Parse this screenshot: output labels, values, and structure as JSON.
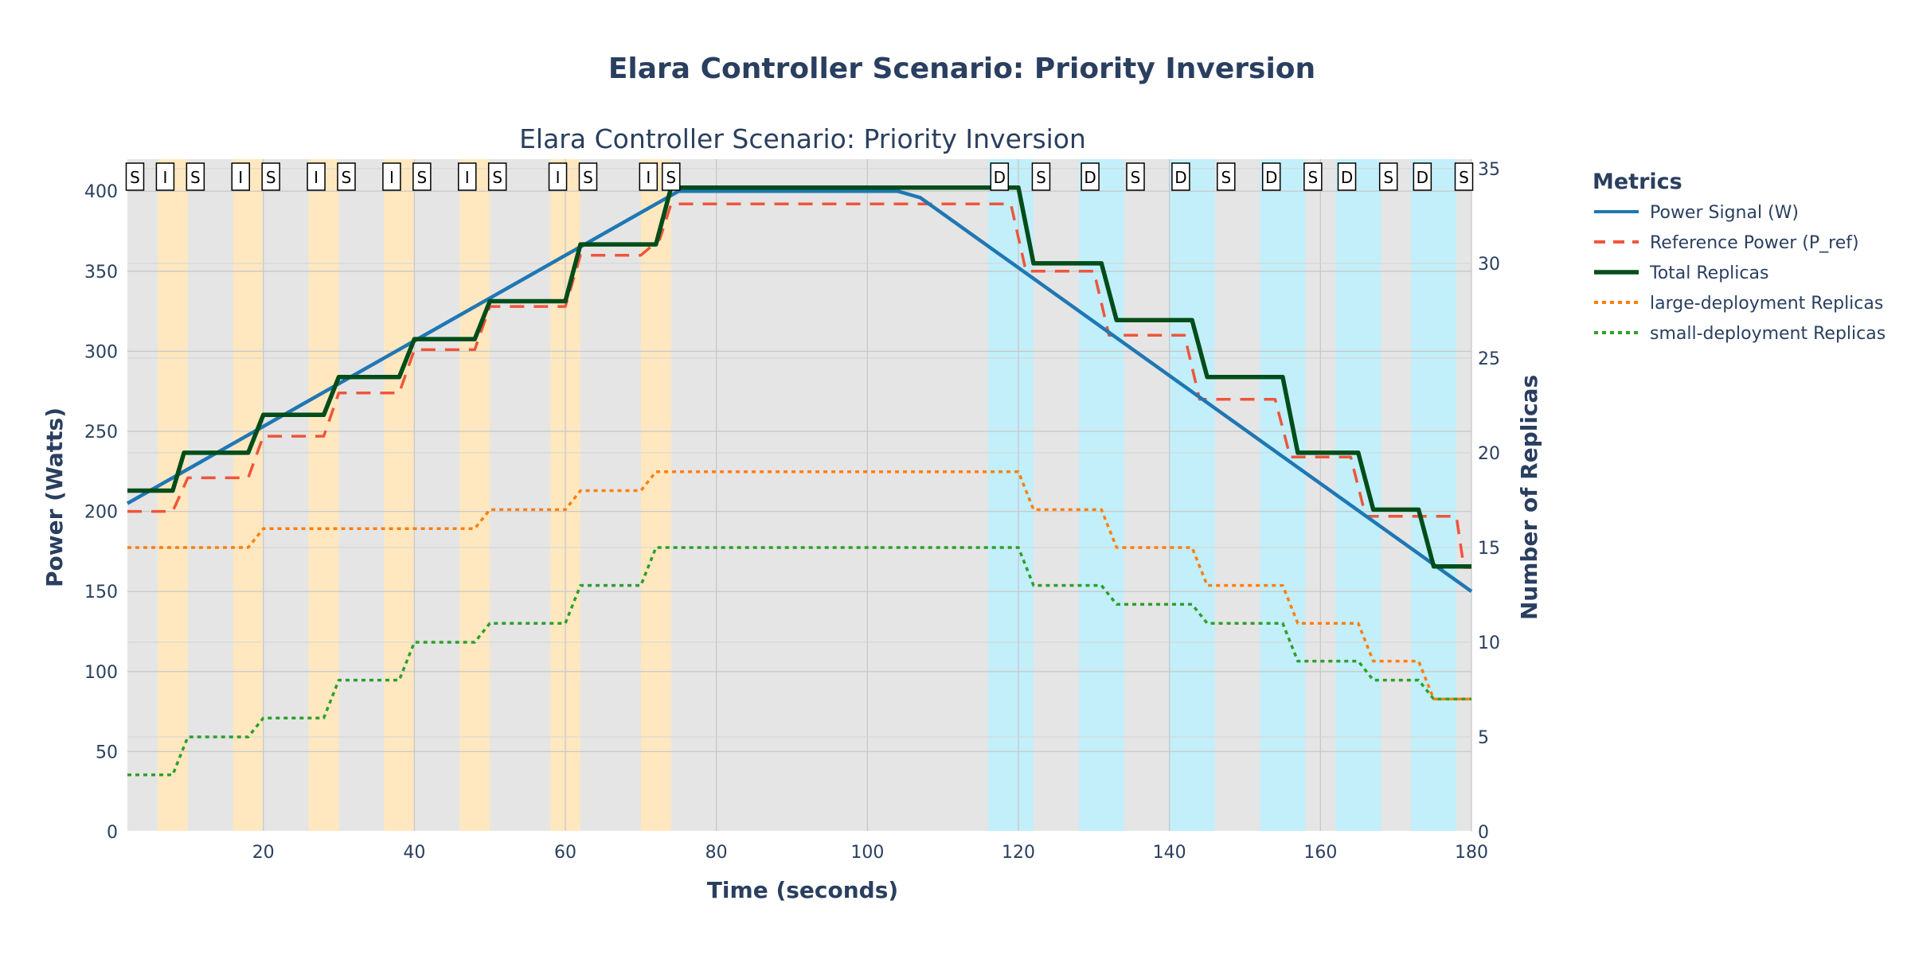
{
  "chart_data": {
    "type": "line",
    "title": "Elara Controller Scenario: Priority Inversion",
    "subtitle": "Elara Controller Scenario: Priority Inversion",
    "xlabel": "Time (seconds)",
    "ylabel_left": "Power (Watts)",
    "ylabel_right": "Number of Replicas",
    "xlim": [
      2,
      180
    ],
    "ylim_left": [
      0,
      420
    ],
    "ylim_right": [
      0,
      35.5
    ],
    "x_ticks": [
      20,
      40,
      60,
      80,
      100,
      120,
      140,
      160,
      180
    ],
    "y_left_ticks": [
      0,
      50,
      100,
      150,
      200,
      250,
      300,
      350,
      400
    ],
    "y_right_ticks": [
      0,
      5,
      10,
      15,
      20,
      25,
      30,
      35
    ],
    "grid": true,
    "legend_title": "Metrics",
    "legend_position": "right",
    "series": [
      {
        "name": "Power Signal (W)",
        "axis": "left",
        "color": "#1f77b4",
        "dash": "solid",
        "x": [
          2,
          75,
          104,
          107,
          180
        ],
        "y": [
          205,
          400,
          400,
          396,
          150
        ]
      },
      {
        "name": "Reference Power (P_ref)",
        "axis": "left",
        "color": "#ef553b",
        "dash": "dash",
        "x": [
          2,
          8,
          10,
          18,
          20,
          28,
          30,
          38,
          40,
          48,
          50,
          60,
          62,
          70,
          72.5,
          74,
          119,
          121,
          130,
          132,
          142,
          144,
          154,
          156,
          164,
          166,
          172,
          174,
          178,
          179,
          180
        ],
        "y": [
          200,
          200,
          221,
          221,
          247,
          247,
          274,
          274,
          301,
          301,
          328,
          328,
          360,
          360,
          370,
          392,
          392,
          350,
          350,
          310,
          310,
          270,
          270,
          234,
          234,
          197,
          197,
          197,
          197,
          165,
          165
        ]
      },
      {
        "name": "Total Replicas",
        "axis": "right",
        "color": "#004d1a",
        "dash": "solid",
        "x": [
          2,
          8,
          9.5,
          18,
          20,
          28,
          30,
          38,
          40,
          48,
          50,
          60,
          62,
          70,
          72,
          74,
          120,
          122,
          131,
          133,
          143,
          145,
          155,
          157,
          165,
          167,
          173,
          175,
          180
        ],
        "y": [
          18,
          18,
          20,
          20,
          22,
          22,
          24,
          24,
          26,
          26,
          28,
          28,
          31,
          31,
          31,
          34,
          34,
          30,
          30,
          27,
          27,
          24,
          24,
          20,
          20,
          17,
          17,
          14,
          14
        ]
      },
      {
        "name": "large-deployment Replicas",
        "axis": "right",
        "color": "#ff7f0e",
        "dash": "dot",
        "x": [
          2,
          18,
          20,
          48,
          50,
          60,
          62,
          70,
          72,
          120,
          122,
          131,
          133,
          143,
          145,
          155,
          157,
          165,
          167,
          173,
          175,
          180
        ],
        "y": [
          15,
          15,
          16,
          16,
          17,
          17,
          18,
          18,
          19,
          19,
          17,
          17,
          15,
          15,
          13,
          13,
          11,
          11,
          9,
          9,
          7,
          7
        ]
      },
      {
        "name": "small-deployment Replicas",
        "axis": "right",
        "color": "#2ca02c",
        "dash": "dot",
        "x": [
          2,
          8,
          10,
          18,
          20,
          28,
          30,
          38,
          40,
          48,
          50,
          60,
          62,
          70,
          72,
          120,
          122,
          131,
          133,
          143,
          145,
          155,
          157,
          165,
          167,
          173,
          175,
          180
        ],
        "y": [
          3,
          3,
          5,
          5,
          6,
          6,
          8,
          8,
          10,
          10,
          11,
          11,
          13,
          13,
          15,
          15,
          13,
          13,
          12,
          12,
          11,
          11,
          9,
          9,
          8,
          8,
          7,
          7
        ]
      }
    ],
    "bands": [
      {
        "x0": 6,
        "x1": 10,
        "kind": "increase",
        "color": "#ffe8bf"
      },
      {
        "x0": 16,
        "x1": 20,
        "kind": "increase",
        "color": "#ffe8bf"
      },
      {
        "x0": 26,
        "x1": 30,
        "kind": "increase",
        "color": "#ffe8bf"
      },
      {
        "x0": 36,
        "x1": 40,
        "kind": "increase",
        "color": "#ffe8bf"
      },
      {
        "x0": 46,
        "x1": 50,
        "kind": "increase",
        "color": "#ffe8bf"
      },
      {
        "x0": 58,
        "x1": 62,
        "kind": "increase",
        "color": "#ffe8bf"
      },
      {
        "x0": 70,
        "x1": 74,
        "kind": "increase",
        "color": "#ffe8bf"
      },
      {
        "x0": 116,
        "x1": 122,
        "kind": "decrease",
        "color": "#c2effa"
      },
      {
        "x0": 128,
        "x1": 134,
        "kind": "decrease",
        "color": "#c2effa"
      },
      {
        "x0": 140,
        "x1": 146,
        "kind": "decrease",
        "color": "#c2effa"
      },
      {
        "x0": 152,
        "x1": 158,
        "kind": "decrease",
        "color": "#c2effa"
      },
      {
        "x0": 162,
        "x1": 168,
        "kind": "decrease",
        "color": "#c2effa"
      },
      {
        "x0": 172,
        "x1": 178,
        "kind": "decrease",
        "color": "#c2effa"
      }
    ],
    "markers": [
      {
        "x": 3,
        "label": "S"
      },
      {
        "x": 7,
        "label": "I"
      },
      {
        "x": 11,
        "label": "S"
      },
      {
        "x": 17,
        "label": "I"
      },
      {
        "x": 21,
        "label": "S"
      },
      {
        "x": 27,
        "label": "I"
      },
      {
        "x": 31,
        "label": "S"
      },
      {
        "x": 37,
        "label": "I"
      },
      {
        "x": 41,
        "label": "S"
      },
      {
        "x": 47,
        "label": "I"
      },
      {
        "x": 51,
        "label": "S"
      },
      {
        "x": 59,
        "label": "I"
      },
      {
        "x": 63,
        "label": "S"
      },
      {
        "x": 71,
        "label": "I"
      },
      {
        "x": 74,
        "label": "S"
      },
      {
        "x": 117.5,
        "label": "D"
      },
      {
        "x": 123,
        "label": "S"
      },
      {
        "x": 129.5,
        "label": "D"
      },
      {
        "x": 135.5,
        "label": "S"
      },
      {
        "x": 141.5,
        "label": "D"
      },
      {
        "x": 147.5,
        "label": "S"
      },
      {
        "x": 153.5,
        "label": "D"
      },
      {
        "x": 159,
        "label": "S"
      },
      {
        "x": 163.5,
        "label": "D"
      },
      {
        "x": 169,
        "label": "S"
      },
      {
        "x": 173.5,
        "label": "D"
      },
      {
        "x": 179,
        "label": "S"
      }
    ],
    "background_color": "#e5e5e5",
    "grid_color": "#d0d0d0"
  }
}
